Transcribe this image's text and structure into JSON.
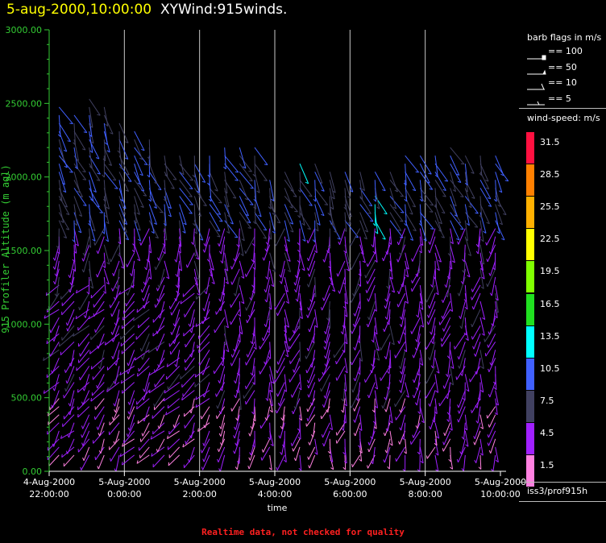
{
  "header": {
    "date_title": "5-aug-2000,10:00:00",
    "main_title": "XYWind:915winds."
  },
  "footer": {
    "note": "Realtime data, not checked for quality"
  },
  "legend": {
    "barb_title": "barb flags in m/s",
    "barb_items": [
      "== 100",
      "== 50",
      "== 10",
      "== 5"
    ],
    "speed_title": "wind-speed: m/s",
    "speed_bins": [
      {
        "label": "31.5",
        "color": "#ff1040"
      },
      {
        "label": "28.5",
        "color": "#ff8000"
      },
      {
        "label": "25.5",
        "color": "#ffb000"
      },
      {
        "label": "22.5",
        "color": "#ffff00"
      },
      {
        "label": "19.5",
        "color": "#80ff00"
      },
      {
        "label": "16.5",
        "color": "#20e020"
      },
      {
        "label": "13.5",
        "color": "#00ffff"
      },
      {
        "label": "10.5",
        "color": "#4060ff"
      },
      {
        "label": "7.5",
        "color": "#404060"
      },
      {
        "label": "4.5",
        "color": "#a020ff"
      },
      {
        "label": "1.5",
        "color": "#ff80e0"
      }
    ],
    "platform": "iss3/prof915h"
  },
  "chart_data": {
    "type": "wind-barb",
    "ylabel": "915 Profiler Altitude (m agl)",
    "xlabel": "time",
    "ylim": [
      0,
      3000
    ],
    "yticks": [
      "0.00",
      "500.00",
      "1000.00",
      "1500.00",
      "2000.00",
      "2500.00",
      "3000.00"
    ],
    "xticks": [
      {
        "date": "4-Aug-2000",
        "time": "22:00:00"
      },
      {
        "date": "5-Aug-2000",
        "time": "0:00:00"
      },
      {
        "date": "5-Aug-2000",
        "time": "2:00:00"
      },
      {
        "date": "5-Aug-2000",
        "time": "4:00:00"
      },
      {
        "date": "5-Aug-2000",
        "time": "6:00:00"
      },
      {
        "date": "5-Aug-2000",
        "time": "8:00:00"
      },
      {
        "date": "5-Aug-2000",
        "time": "10:00:00"
      }
    ],
    "time_range_hours": [
      0,
      12
    ],
    "profile_interval_min": 24,
    "grid_vertical": true,
    "approx_profile_tops_m": [
      2480,
      2470,
      2580,
      2480,
      2380,
      2360,
      2270,
      2170,
      2160,
      2190,
      2190,
      2210,
      2200,
      2200,
      2020,
      2040,
      2110,
      2110,
      2060,
      2060,
      2060,
      2070,
      2060,
      2190,
      2180,
      2170,
      2200,
      2170,
      2150,
      2150
    ],
    "colors": {
      "axis": "#33cc33",
      "grid": "#c8c8c8",
      "text": "#ffffff"
    }
  }
}
